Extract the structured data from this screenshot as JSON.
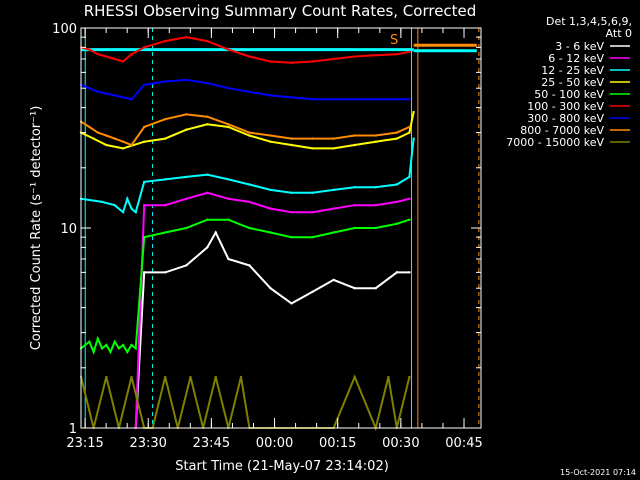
{
  "chart_data": {
    "type": "line",
    "title": "RHESSI Observing Summary Count Rates, Corrected",
    "xlabel": "Start Time (21-May-07 23:14:02)",
    "ylabel": "Corrected Count Rate (s⁻¹ detector⁻¹)",
    "yscale": "log",
    "ylim": [
      1,
      100
    ],
    "x_unit": "minutes after 23:14:02",
    "xlim": [
      0,
      95
    ],
    "x_tick_labels": [
      "23:15",
      "23:30",
      "23:45",
      "00:00",
      "00:15",
      "00:30",
      "00:45"
    ],
    "y_tick_labels": [
      "1",
      "10",
      "100"
    ],
    "legend_header": [
      "Det 1,3,4,5,6,9,",
      "Att 0"
    ],
    "legend_placement": "right",
    "timestamp": "15-Oct-2021 07:14",
    "flag_label": "S",
    "markers": [
      {
        "name": "night-start",
        "x": 1,
        "color": "#00ffff",
        "style": "solid"
      },
      {
        "name": "saa-dash",
        "x": 17,
        "color": "#00ffff",
        "style": "dashed"
      },
      {
        "name": "night-end",
        "x": 78.5,
        "color": "#00ffff",
        "style": "solid"
      },
      {
        "name": "saa-start",
        "x": 80,
        "color": "#ff8c00",
        "style": "solid"
      },
      {
        "name": "saa-end",
        "x": 94.5,
        "color": "#ff8c00",
        "style": "dashed"
      }
    ],
    "flag_bars": [
      {
        "color": "#00ffff",
        "x0": 0,
        "x1": 79,
        "y": 78
      },
      {
        "color": "#ff8c00",
        "x0": 79,
        "x1": 94,
        "y": 82
      },
      {
        "color": "#00ffff",
        "x0": 79,
        "x1": 94,
        "y": 77
      }
    ],
    "series": [
      {
        "name": "3 - 6 keV",
        "color": "#ffffff",
        "x": [
          13,
          15,
          20,
          25,
          30,
          32,
          35,
          40,
          45,
          50,
          55,
          60,
          65,
          70,
          75,
          78
        ],
        "values": [
          1,
          6.0,
          6.0,
          6.5,
          8.0,
          9.5,
          7.0,
          6.5,
          5.0,
          4.2,
          4.8,
          5.5,
          5.0,
          5.0,
          6.0,
          6.0
        ]
      },
      {
        "name": "6 - 12 keV",
        "color": "#ff00ff",
        "x": [
          13,
          15,
          20,
          25,
          30,
          35,
          40,
          45,
          50,
          55,
          60,
          65,
          70,
          75,
          78
        ],
        "values": [
          1,
          13.0,
          13.0,
          14.0,
          15.0,
          14.0,
          13.5,
          12.5,
          12.0,
          12.0,
          12.5,
          13.0,
          13.0,
          13.5,
          14.0
        ]
      },
      {
        "name": "12 - 25 keV",
        "color": "#00ffff",
        "x": [
          0,
          5,
          8,
          10,
          11,
          12,
          13,
          15,
          20,
          25,
          30,
          35,
          40,
          45,
          50,
          55,
          60,
          65,
          70,
          75,
          78,
          79
        ],
        "values": [
          14.0,
          13.5,
          13.0,
          12.0,
          14.0,
          12.5,
          12.0,
          17.0,
          17.5,
          18.0,
          18.5,
          17.5,
          16.5,
          15.5,
          15.0,
          15.0,
          15.5,
          16.0,
          16.0,
          16.5,
          18.0,
          28.0
        ]
      },
      {
        "name": "25 - 50 keV",
        "color": "#ffff00",
        "x": [
          0,
          3,
          6,
          10,
          15,
          20,
          25,
          30,
          35,
          40,
          45,
          50,
          55,
          60,
          65,
          70,
          75,
          78,
          79
        ],
        "values": [
          30.0,
          28.0,
          26.0,
          25.0,
          27.0,
          28.0,
          31.0,
          33.0,
          32.0,
          29.0,
          27.0,
          26.0,
          25.0,
          25.0,
          26.0,
          27.0,
          28.0,
          30.0,
          38.0
        ]
      },
      {
        "name": "50 - 100 keV",
        "color": "#00ff00",
        "x": [
          0,
          2,
          3,
          4,
          5,
          6,
          7,
          8,
          9,
          10,
          11,
          12,
          13,
          15,
          20,
          25,
          30,
          35,
          40,
          45,
          50,
          55,
          60,
          65,
          70,
          75,
          78
        ],
        "values": [
          2.5,
          2.7,
          2.4,
          2.8,
          2.5,
          2.6,
          2.4,
          2.7,
          2.5,
          2.6,
          2.4,
          2.6,
          2.5,
          9.0,
          9.5,
          10.0,
          11.0,
          11.0,
          10.0,
          9.5,
          9.0,
          9.0,
          9.5,
          10.0,
          10.0,
          10.5,
          11.0
        ]
      },
      {
        "name": "100 - 300 keV",
        "color": "#ff0000",
        "x": [
          0,
          2,
          4,
          6,
          8,
          10,
          12,
          15,
          20,
          25,
          30,
          35,
          40,
          45,
          50,
          55,
          60,
          65,
          70,
          75,
          78
        ],
        "values": [
          80.0,
          78.0,
          74.0,
          72.0,
          70.0,
          68.0,
          74.0,
          80.0,
          86.0,
          90.0,
          86.0,
          78.0,
          72.0,
          68.0,
          67.0,
          68.0,
          70.0,
          72.0,
          73.0,
          74.0,
          76.0
        ]
      },
      {
        "name": "300 - 800 keV",
        "color": "#0000ff",
        "x": [
          0,
          2,
          4,
          6,
          8,
          10,
          12,
          15,
          20,
          25,
          30,
          35,
          40,
          45,
          50,
          55,
          60,
          65,
          70,
          75,
          78
        ],
        "values": [
          52.0,
          50.0,
          48.0,
          47.0,
          46.0,
          45.0,
          44.0,
          52.0,
          54.0,
          55.0,
          53.0,
          50.0,
          48.0,
          46.0,
          45.0,
          44.0,
          44.0,
          44.0,
          44.0,
          44.0,
          44.0
        ]
      },
      {
        "name": "800 - 7000 keV",
        "color": "#ff8c00",
        "x": [
          0,
          2,
          4,
          6,
          8,
          10,
          12,
          15,
          20,
          25,
          30,
          35,
          40,
          45,
          50,
          55,
          60,
          65,
          70,
          75,
          78
        ],
        "values": [
          34.0,
          32.0,
          30.0,
          29.0,
          28.0,
          27.0,
          26.0,
          32.0,
          35.0,
          37.0,
          36.0,
          33.0,
          30.0,
          29.0,
          28.0,
          28.0,
          28.0,
          29.0,
          29.0,
          30.0,
          32.0
        ]
      },
      {
        "name": "7000 - 15000 keV",
        "color": "#808000",
        "x": [
          0,
          3,
          6,
          9,
          12,
          15,
          17,
          20,
          23,
          26,
          29,
          32,
          35,
          38,
          40,
          45,
          50,
          55,
          60,
          65,
          70,
          73,
          75,
          78
        ],
        "values": [
          1.8,
          1.0,
          1.8,
          1.0,
          1.8,
          1.0,
          1.0,
          1.8,
          1.0,
          1.8,
          1.0,
          1.8,
          1.0,
          1.8,
          1.0,
          1.0,
          1.0,
          1.0,
          1.0,
          1.8,
          1.0,
          1.8,
          1.0,
          1.8
        ]
      }
    ]
  }
}
